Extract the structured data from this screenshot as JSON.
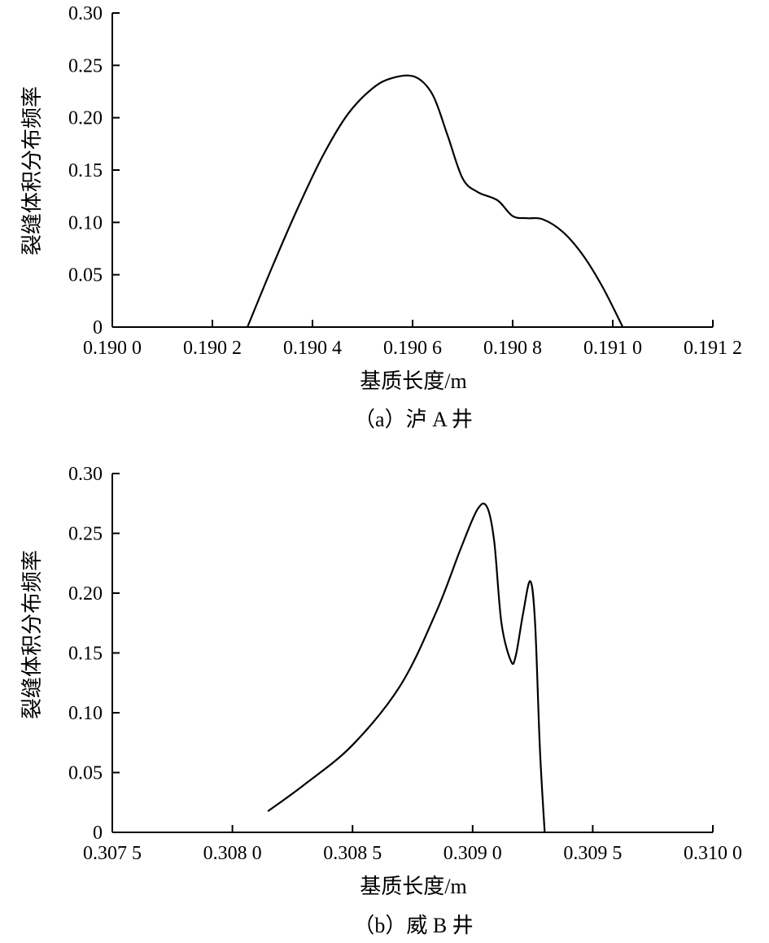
{
  "chart_data": [
    {
      "type": "line",
      "title": "",
      "caption": "（a）泸 A 井",
      "xlabel": "基质长度/m",
      "ylabel": "裂缝体积分布频率",
      "xlim": [
        0.19,
        0.1912
      ],
      "ylim": [
        0,
        0.3
      ],
      "x_ticks": [
        0.19,
        0.1902,
        0.1904,
        0.1906,
        0.1908,
        0.191,
        0.1912
      ],
      "x_tick_labels": [
        "0.190 0",
        "0.190 2",
        "0.190 4",
        "0.190 6",
        "0.190 8",
        "0.191 0",
        "0.191 2"
      ],
      "y_ticks": [
        0,
        0.05,
        0.1,
        0.15,
        0.2,
        0.25,
        0.3
      ],
      "y_tick_labels": [
        "0",
        "0.05",
        "0.10",
        "0.15",
        "0.20",
        "0.25",
        "0.30"
      ],
      "grid": false,
      "series": [
        {
          "color": "#000000",
          "x": [
            0.19027,
            0.19032,
            0.19037,
            0.19042,
            0.19047,
            0.19052,
            0.19056,
            0.190605,
            0.19064,
            0.19067,
            0.1907,
            0.19073,
            0.19077,
            0.1908,
            0.19083,
            0.19086,
            0.1909,
            0.19094,
            0.19098,
            0.19102
          ],
          "y": [
            0.0,
            0.058,
            0.113,
            0.163,
            0.203,
            0.228,
            0.238,
            0.239,
            0.222,
            0.183,
            0.142,
            0.129,
            0.121,
            0.106,
            0.104,
            0.103,
            0.091,
            0.069,
            0.038,
            0.0
          ]
        }
      ]
    },
    {
      "type": "line",
      "title": "",
      "caption": "（b）威 B 井",
      "xlabel": "基质长度/m",
      "ylabel": "裂缝体积分布频率",
      "xlim": [
        0.3075,
        0.31
      ],
      "ylim": [
        0,
        0.3
      ],
      "x_ticks": [
        0.3075,
        0.308,
        0.3085,
        0.309,
        0.3095,
        0.31
      ],
      "x_tick_labels": [
        "0.307 5",
        "0.308 0",
        "0.308 5",
        "0.309 0",
        "0.309 5",
        "0.310 0"
      ],
      "y_ticks": [
        0,
        0.05,
        0.1,
        0.15,
        0.2,
        0.25,
        0.3
      ],
      "y_tick_labels": [
        "0",
        "0.05",
        "0.10",
        "0.15",
        "0.20",
        "0.25",
        "0.30"
      ],
      "grid": false,
      "series": [
        {
          "color": "#000000",
          "x": [
            0.30815,
            0.3083,
            0.3085,
            0.3087,
            0.30885,
            0.30895,
            0.30902,
            0.30906,
            0.30909,
            0.30912,
            0.30916,
            0.30918,
            0.30921,
            0.30924,
            0.30926,
            0.30928,
            0.3093
          ],
          "y": [
            0.018,
            0.04,
            0.073,
            0.123,
            0.185,
            0.237,
            0.27,
            0.272,
            0.243,
            0.175,
            0.143,
            0.148,
            0.183,
            0.21,
            0.175,
            0.07,
            0.0
          ]
        }
      ]
    }
  ]
}
